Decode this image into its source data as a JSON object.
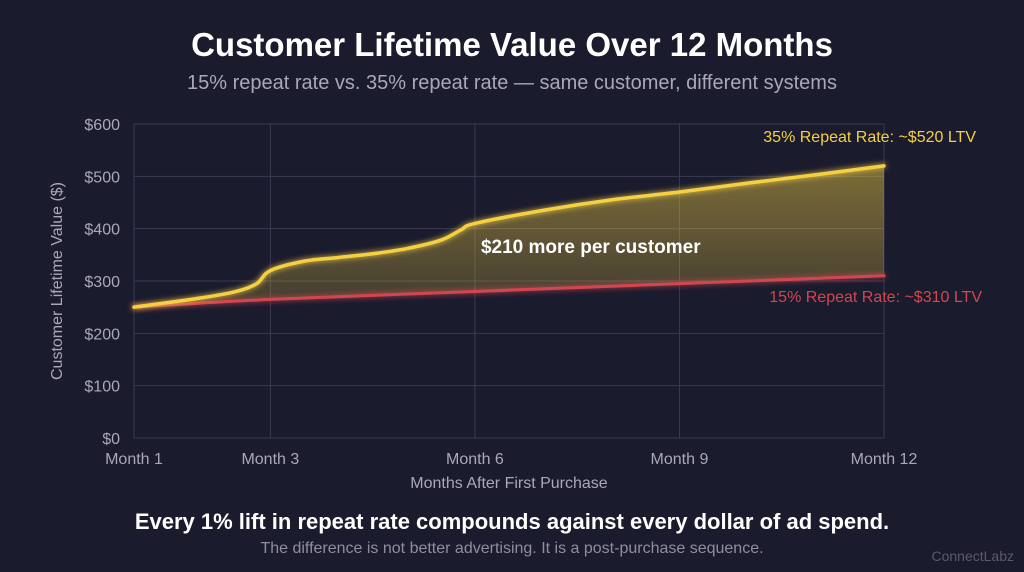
{
  "header": {
    "title": "Customer Lifetime Value Over 12 Months",
    "subtitle": "15% repeat rate vs. 35% repeat rate — same customer, different systems"
  },
  "footer": {
    "headline": "Every 1% lift in repeat rate compounds against every dollar of ad spend.",
    "subline": "The difference is not better advertising. It is a post-purchase sequence.",
    "brand": "ConnectLabz"
  },
  "colors": {
    "high_series": "#f5d142",
    "low_series": "#d2464f",
    "gap_label": "#ffffff"
  },
  "chart_data": {
    "type": "area",
    "title": "Customer Lifetime Value Over 12 Months",
    "xlabel": "Months After First Purchase",
    "ylabel": "Customer Lifetime Value ($)",
    "xlim": [
      1,
      12
    ],
    "ylim": [
      0,
      600
    ],
    "x_ticks": [
      {
        "value": 1,
        "label": "Month 1"
      },
      {
        "value": 3,
        "label": "Month 3"
      },
      {
        "value": 6,
        "label": "Month 6"
      },
      {
        "value": 9,
        "label": "Month 9"
      },
      {
        "value": 12,
        "label": "Month 12"
      }
    ],
    "y_ticks": [
      {
        "value": 0,
        "label": "$0"
      },
      {
        "value": 100,
        "label": "$100"
      },
      {
        "value": 200,
        "label": "$200"
      },
      {
        "value": 300,
        "label": "$300"
      },
      {
        "value": 400,
        "label": "$400"
      },
      {
        "value": 500,
        "label": "$500"
      },
      {
        "value": 600,
        "label": "$600"
      }
    ],
    "grid": true,
    "series": [
      {
        "name": "35% Repeat Rate",
        "label": "35% Repeat Rate: ~$520 LTV",
        "x": [
          1,
          2,
          2.5,
          2.8,
          3,
          3.5,
          4,
          4.5,
          5,
          5.5,
          5.8,
          6,
          7,
          8,
          9,
          10,
          11,
          12
        ],
        "y": [
          250,
          268,
          280,
          295,
          320,
          338,
          345,
          352,
          362,
          378,
          398,
          410,
          435,
          455,
          470,
          487,
          503,
          520
        ]
      },
      {
        "name": "15% Repeat Rate",
        "label": "15% Repeat Rate: ~$310 LTV",
        "x": [
          1,
          3,
          6,
          9,
          12
        ],
        "y": [
          250,
          265,
          280,
          295,
          310
        ]
      }
    ],
    "annotations": [
      {
        "text": "$210 more per customer",
        "x": 7.7,
        "y": 365
      }
    ]
  }
}
